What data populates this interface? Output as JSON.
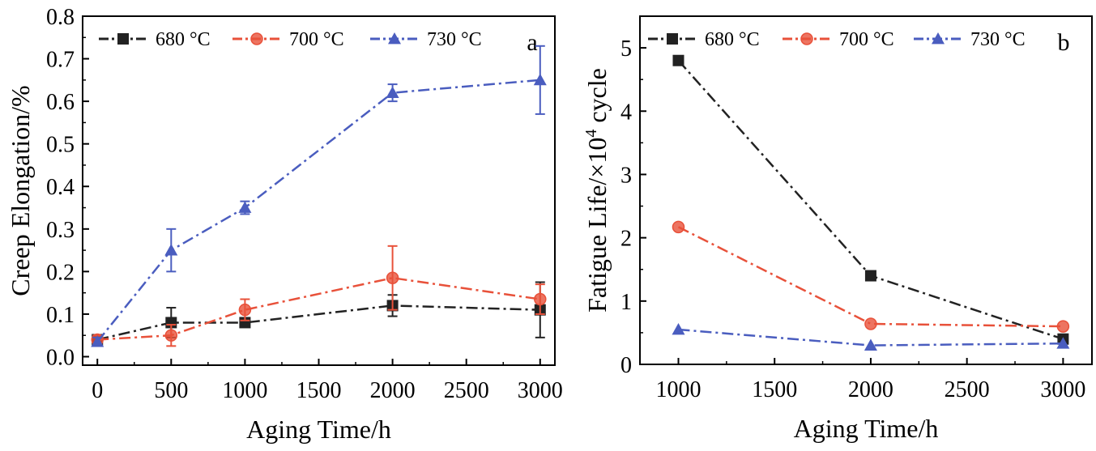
{
  "chart_data": [
    {
      "type": "line",
      "panel_label": "a",
      "xlabel": "Aging Time/h",
      "ylabel": "Creep Elongation/%",
      "xlim": [
        -100,
        3100
      ],
      "ylim": [
        -0.02,
        0.8
      ],
      "xticks": [
        0,
        500,
        1000,
        1500,
        2000,
        2500,
        3000
      ],
      "xtick_labels": [
        "0",
        "500",
        "1000",
        "1500",
        "2000",
        "2500",
        "3000"
      ],
      "yticks": [
        0.0,
        0.1,
        0.2,
        0.3,
        0.4,
        0.5,
        0.6,
        0.7,
        0.8
      ],
      "ytick_labels": [
        "0.0",
        "0.1",
        "0.2",
        "0.3",
        "0.4",
        "0.5",
        "0.6",
        "0.7",
        "0.8"
      ],
      "grid": false,
      "legend_position": "top",
      "series": [
        {
          "name": "680 °C",
          "color": "#222222",
          "marker": "square",
          "x": [
            0,
            500,
            1000,
            2000,
            3000
          ],
          "y": [
            0.04,
            0.08,
            0.08,
            0.12,
            0.11
          ],
          "err": [
            0.01,
            0.035,
            0.01,
            0.025,
            0.065
          ]
        },
        {
          "name": "700 °C",
          "color": "#e8513a",
          "marker": "circle",
          "x": [
            0,
            500,
            1000,
            2000,
            3000
          ],
          "y": [
            0.04,
            0.05,
            0.11,
            0.185,
            0.135
          ],
          "err": [
            0.01,
            0.025,
            0.025,
            0.075,
            0.035
          ]
        },
        {
          "name": "730 °C",
          "color": "#4a5dbf",
          "marker": "triangle",
          "x": [
            0,
            500,
            1000,
            2000,
            3000
          ],
          "y": [
            0.035,
            0.25,
            0.35,
            0.62,
            0.65
          ],
          "err": [
            0.01,
            0.05,
            0.015,
            0.02,
            0.08
          ]
        }
      ]
    },
    {
      "type": "line",
      "panel_label": "b",
      "xlabel": "Aging Time/h",
      "ylabel_prefix": "Fatigue Life/×10",
      "ylabel_sup": "4",
      "ylabel_suffix": " cycle",
      "xlim": [
        800,
        3150
      ],
      "ylim": [
        0,
        5.5
      ],
      "xticks": [
        1000,
        1500,
        2000,
        2500,
        3000
      ],
      "xtick_labels": [
        "1000",
        "1500",
        "2000",
        "2500",
        "3000"
      ],
      "yticks": [
        0,
        1,
        2,
        3,
        4,
        5
      ],
      "ytick_labels": [
        "0",
        "1",
        "2",
        "3",
        "4",
        "5"
      ],
      "grid": false,
      "legend_position": "top",
      "series": [
        {
          "name": "680 °C",
          "color": "#222222",
          "marker": "square",
          "x": [
            1000,
            2000,
            3000
          ],
          "y": [
            4.8,
            1.4,
            0.4
          ]
        },
        {
          "name": "700 °C",
          "color": "#e8513a",
          "marker": "circle",
          "x": [
            1000,
            2000,
            3000
          ],
          "y": [
            2.17,
            0.64,
            0.6
          ]
        },
        {
          "name": "730 °C",
          "color": "#4a5dbf",
          "marker": "triangle",
          "x": [
            1000,
            2000,
            3000
          ],
          "y": [
            0.55,
            0.3,
            0.33
          ]
        }
      ]
    }
  ]
}
